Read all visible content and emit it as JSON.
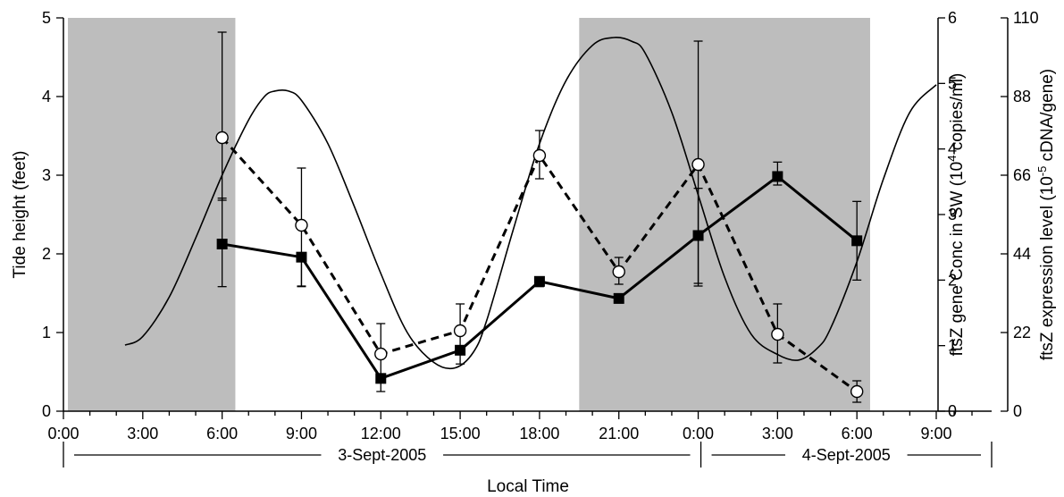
{
  "chart_data": {
    "type": "line",
    "xlabel": "Local Time",
    "x_ticks": [
      "0:00",
      "3:00",
      "6:00",
      "9:00",
      "12:00",
      "15:00",
      "18:00",
      "21:00",
      "0:00",
      "3:00",
      "6:00",
      "9:00"
    ],
    "x_range_hours": [
      0,
      33
    ],
    "dates": [
      {
        "label": "3-Sept-2005",
        "start_hour": 0,
        "end_hour": 24
      },
      {
        "label": "4-Sept-2005",
        "start_hour": 24,
        "end_hour": 33
      }
    ],
    "y_left": {
      "label": "Tide height (feet)",
      "range": [
        0,
        5
      ],
      "ticks": [
        "0",
        "1",
        "2",
        "3",
        "4",
        "5"
      ]
    },
    "y_right1": {
      "label_parts": [
        "ftsZ gene Conc in SW (10",
        "4",
        " copies/ml)"
      ],
      "range": [
        0,
        6
      ],
      "ticks": [
        "0",
        "1",
        "2",
        "3",
        "4",
        "5",
        "6"
      ]
    },
    "y_right2": {
      "label_parts": [
        "ftsZ expression level (10",
        "-5",
        " cDNA/gene)"
      ],
      "range": [
        0,
        110
      ],
      "ticks": [
        "0",
        "22",
        "44",
        "66",
        "88",
        "110"
      ]
    },
    "night_shading": [
      [
        0,
        6.5
      ],
      [
        19.5,
        30.5
      ]
    ],
    "tide": {
      "x": [
        2.33,
        3.0,
        4.0,
        5.0,
        6.0,
        7.0,
        7.6,
        8.0,
        8.5,
        9.0,
        10.0,
        11.0,
        12.0,
        13.0,
        14.0,
        14.8,
        15.5,
        16.0,
        17.0,
        18.0,
        19.0,
        20.0,
        20.8,
        21.5,
        22.0,
        23.0,
        24.0,
        25.0,
        26.0,
        27.0,
        27.8,
        28.5,
        29.0,
        30.0,
        31.0,
        32.0,
        33.0
      ],
      "y": [
        0.84,
        0.95,
        1.45,
        2.2,
        3.0,
        3.7,
        4.0,
        4.07,
        4.07,
        3.95,
        3.4,
        2.6,
        1.75,
        1.0,
        0.62,
        0.55,
        0.75,
        1.15,
        2.3,
        3.4,
        4.2,
        4.65,
        4.75,
        4.7,
        4.55,
        3.8,
        2.75,
        1.7,
        0.98,
        0.72,
        0.65,
        0.8,
        1.05,
        1.9,
        2.95,
        3.8,
        4.15
      ]
    },
    "series": [
      {
        "name": "ftsZ gene Conc in SW",
        "axis": "y_right1",
        "marker": "filled-square",
        "line": "solid",
        "x": [
          6,
          9,
          12,
          15,
          18,
          21,
          24,
          27,
          30
        ],
        "values": [
          2.55,
          2.35,
          0.5,
          0.93,
          1.98,
          1.72,
          2.68,
          3.58,
          2.6
        ],
        "err_low": [
          1.9,
          1.9,
          0.3,
          0.72,
          1.9,
          1.65,
          1.95,
          3.45,
          2.0
        ],
        "err_high": [
          3.25,
          2.35,
          0.5,
          0.93,
          2.05,
          1.72,
          3.4,
          3.8,
          3.2
        ]
      },
      {
        "name": "ftsZ expression level",
        "axis": "y_right2",
        "marker": "open-circle",
        "line": "dashed",
        "x": [
          6,
          9,
          12,
          15,
          18,
          21,
          24,
          27,
          30
        ],
        "values": [
          76.5,
          52,
          16,
          22.5,
          71.5,
          39,
          69,
          21.5,
          5.5
        ],
        "err_low": [
          59,
          35,
          10,
          18,
          65,
          35.5,
          35,
          13.5,
          2.5
        ],
        "err_high": [
          106,
          68,
          24.5,
          30,
          78.5,
          43,
          103.5,
          30,
          8.5
        ]
      }
    ],
    "grid": false,
    "legend": "none"
  }
}
